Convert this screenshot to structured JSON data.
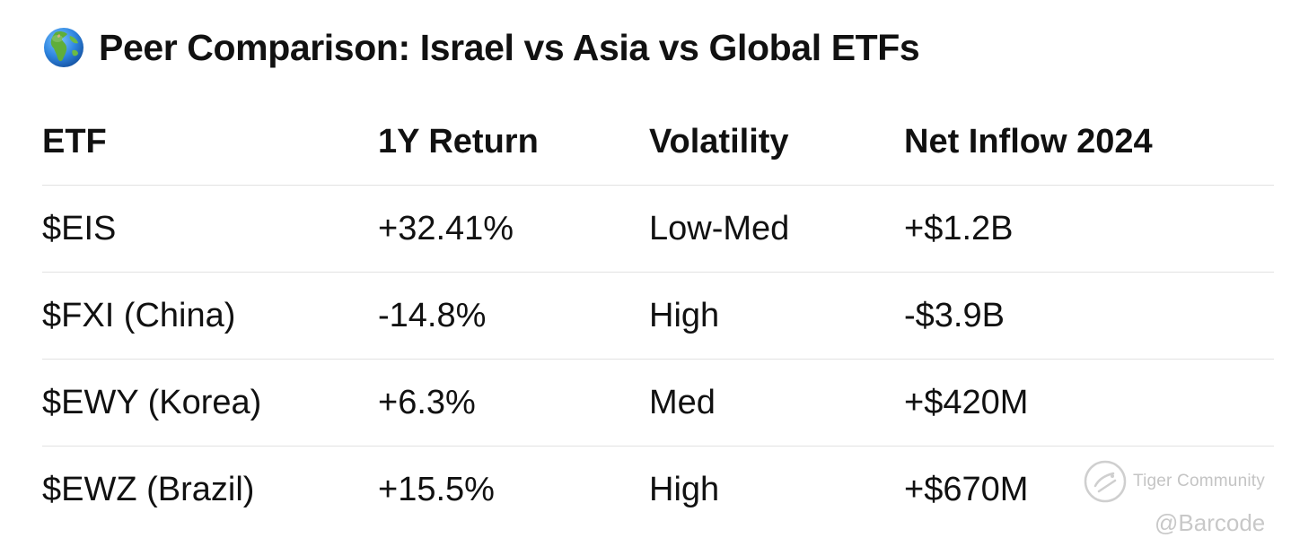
{
  "title": {
    "icon": "globe-europe-africa-icon",
    "text": "Peer Comparison: Israel vs Asia vs Global ETFs"
  },
  "table": {
    "headers": [
      "ETF",
      "1Y Return",
      "Volatility",
      "Net Inflow 2024"
    ],
    "rows": [
      [
        "$EIS",
        "+32.41%",
        "Low-Med",
        "+$1.2B"
      ],
      [
        "$FXI (China)",
        "-14.8%",
        "High",
        "-$3.9B"
      ],
      [
        "$EWY (Korea)",
        "+6.3%",
        "Med",
        "+$420M"
      ],
      [
        "$EWZ (Brazil)",
        "+15.5%",
        "High",
        "+$670M"
      ]
    ]
  },
  "watermark": {
    "brand": "Tiger Community",
    "user": "@Barcode"
  },
  "colors": {
    "text": "#111111",
    "divider": "#e2e2e2",
    "watermark": "#c4c4c4",
    "globe_ocean": "#3a8ee6",
    "globe_land": "#5fae3a"
  }
}
